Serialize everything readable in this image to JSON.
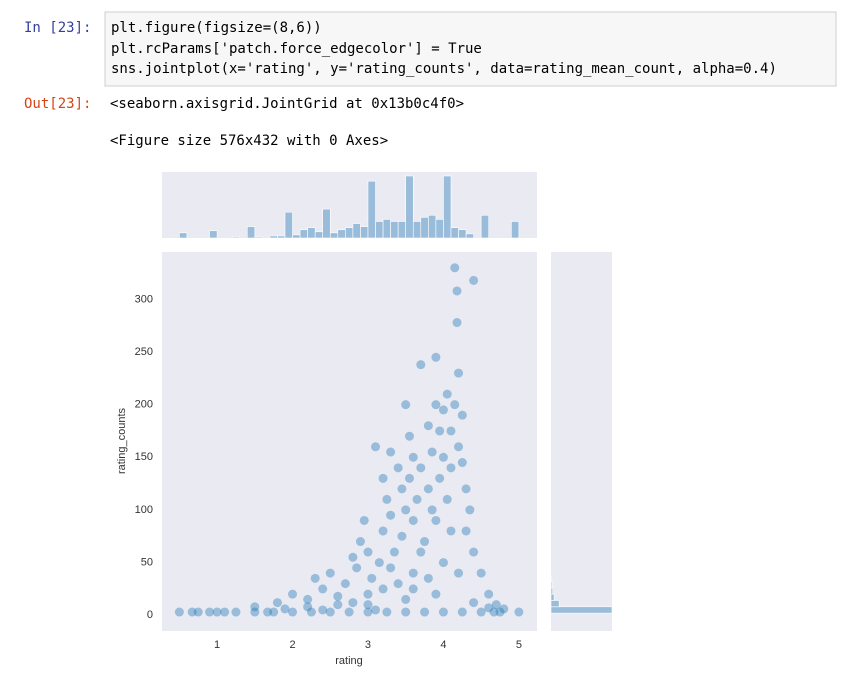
{
  "input_prompt": "In [23]:",
  "code_lines": [
    "plt.figure(figsize=(8,6))",
    "plt.rcParams['patch.force_edgecolor'] = True",
    "sns.jointplot(x='rating', y='rating_counts', data=rating_mean_count, alpha=0.4)"
  ],
  "output_prompt": "Out[23]:",
  "outputs": [
    "<seaborn.axisgrid.JointGrid at 0x13b0c4f0>",
    "<Figure size 576x432 with 0 Axes>"
  ],
  "chart_data": {
    "type": "scatter",
    "color": "#1f77b4",
    "alpha": 0.4,
    "grid": false,
    "x_label": "rating",
    "y_label": "rating_counts",
    "xlim": [
      0.27,
      5.24
    ],
    "ylim": [
      -15,
      345
    ],
    "xticks": [
      1,
      2,
      3,
      4,
      5
    ],
    "yticks": [
      0,
      50,
      100,
      150,
      200,
      250,
      300
    ],
    "x": [
      0.5,
      0.67,
      0.75,
      0.9,
      1.0,
      1.1,
      1.25,
      1.5,
      1.67,
      1.75,
      2.0,
      2.25,
      2.5,
      2.75,
      3.0,
      3.25,
      3.5,
      3.75,
      4.0,
      4.25,
      4.5,
      4.67,
      4.75,
      5.0,
      1.5,
      1.8,
      2.0,
      2.2,
      2.3,
      2.4,
      2.5,
      2.6,
      2.7,
      2.8,
      2.85,
      2.9,
      2.95,
      3.0,
      3.05,
      3.1,
      3.15,
      3.2,
      3.2,
      3.25,
      3.3,
      3.3,
      3.35,
      3.4,
      3.45,
      3.45,
      3.5,
      3.5,
      3.55,
      3.55,
      3.6,
      3.6,
      3.65,
      3.7,
      3.7,
      3.75,
      3.8,
      3.8,
      3.85,
      3.85,
      3.9,
      3.9,
      3.95,
      3.95,
      4.0,
      4.0,
      4.05,
      4.05,
      4.1,
      4.1,
      4.15,
      4.15,
      4.18,
      4.18,
      4.2,
      4.2,
      4.25,
      4.25,
      4.3,
      4.3,
      4.35,
      4.4,
      4.4,
      4.5,
      4.6,
      4.7,
      4.8,
      3.0,
      3.2,
      3.4,
      3.6,
      3.8,
      3.9,
      4.0,
      2.6,
      2.2,
      1.9,
      3.5,
      3.7,
      3.3,
      4.1,
      4.2,
      3.9,
      2.8,
      3.1,
      2.4,
      4.4,
      4.6,
      3.6,
      3.0
    ],
    "values": [
      3,
      3,
      3,
      3,
      3,
      3,
      3,
      3,
      3,
      3,
      3,
      3,
      3,
      3,
      3,
      3,
      3,
      3,
      3,
      3,
      3,
      3,
      3,
      3,
      8,
      12,
      20,
      15,
      35,
      25,
      40,
      18,
      30,
      55,
      45,
      70,
      90,
      60,
      35,
      160,
      50,
      80,
      130,
      110,
      95,
      155,
      60,
      140,
      120,
      75,
      100,
      200,
      170,
      130,
      90,
      150,
      110,
      238,
      140,
      70,
      180,
      120,
      100,
      155,
      245,
      200,
      130,
      175,
      195,
      150,
      210,
      110,
      175,
      140,
      200,
      330,
      278,
      308,
      230,
      160,
      190,
      145,
      120,
      80,
      100,
      318,
      60,
      40,
      20,
      10,
      6,
      20,
      25,
      30,
      40,
      35,
      20,
      50,
      10,
      8,
      6,
      15,
      60,
      45,
      80,
      40,
      90,
      12,
      5,
      5,
      12,
      7,
      25,
      10
    ],
    "marginal_x": {
      "bins": [
        0.5,
        0.6,
        0.7,
        0.8,
        0.9,
        1.0,
        1.1,
        1.2,
        1.3,
        1.4,
        1.5,
        1.6,
        1.7,
        1.8,
        1.9,
        2.0,
        2.1,
        2.2,
        2.3,
        2.4,
        2.5,
        2.6,
        2.7,
        2.8,
        2.9,
        3.0,
        3.1,
        3.2,
        3.3,
        3.4,
        3.5,
        3.6,
        3.7,
        3.8,
        3.9,
        4.0,
        4.1,
        4.2,
        4.3,
        4.4,
        4.5,
        4.6,
        4.7,
        4.8,
        4.9,
        5.0
      ],
      "counts": [
        5,
        0,
        0,
        0,
        7,
        0,
        0,
        1,
        0,
        11,
        1,
        0,
        2,
        2,
        25,
        3,
        8,
        10,
        6,
        28,
        5,
        8,
        10,
        14,
        11,
        55,
        16,
        18,
        16,
        16,
        60,
        16,
        20,
        22,
        18,
        60,
        10,
        8,
        4,
        0,
        22,
        0,
        0,
        0,
        16
      ]
    },
    "marginal_y": {
      "bins": [
        2,
        8,
        14,
        20,
        26,
        32,
        38
      ],
      "counts": [
        1800,
        240,
        90,
        50,
        30,
        20
      ]
    }
  }
}
